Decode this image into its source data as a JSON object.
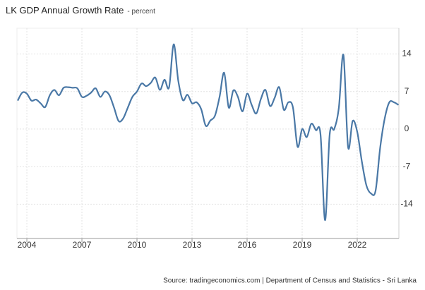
{
  "chart_data": {
    "type": "line",
    "title": "LK GDP Annual Growth Rate",
    "subtitle": "- percent",
    "source": "Source: tradingeconomics.com | Department of Census and Statistics - Sri Lanka",
    "x": [
      2003.5,
      2003.75,
      2004,
      2004.25,
      2004.5,
      2004.75,
      2005,
      2005.25,
      2005.5,
      2005.75,
      2006,
      2006.25,
      2006.5,
      2006.75,
      2007,
      2007.25,
      2007.5,
      2007.75,
      2008,
      2008.25,
      2008.5,
      2008.75,
      2009,
      2009.25,
      2009.5,
      2009.75,
      2010,
      2010.25,
      2010.5,
      2010.75,
      2011,
      2011.25,
      2011.5,
      2011.75,
      2012,
      2012.25,
      2012.5,
      2012.75,
      2013,
      2013.25,
      2013.5,
      2013.75,
      2014,
      2014.25,
      2014.5,
      2014.75,
      2015,
      2015.25,
      2015.5,
      2015.75,
      2016,
      2016.25,
      2016.5,
      2016.75,
      2017,
      2017.25,
      2017.5,
      2017.75,
      2018,
      2018.25,
      2018.5,
      2018.75,
      2019,
      2019.25,
      2019.5,
      2019.75,
      2020,
      2020.25,
      2020.5,
      2020.75,
      2021,
      2021.25,
      2021.5,
      2021.75,
      2022,
      2022.25,
      2022.5,
      2022.75,
      2023,
      2023.25,
      2023.5,
      2023.75,
      2024,
      2024.25
    ],
    "series": [
      {
        "name": "GDP Annual Growth Rate",
        "color": "#4a78a6",
        "values": [
          5.3,
          6.8,
          6.6,
          5.3,
          5.5,
          4.8,
          4.1,
          6.3,
          7.3,
          6.3,
          7.7,
          7.8,
          7.7,
          7.6,
          6.0,
          6.2,
          6.8,
          7.6,
          6.0,
          7.0,
          6.3,
          4.0,
          1.5,
          2.0,
          4.0,
          6.0,
          7.0,
          8.5,
          8.0,
          8.6,
          9.6,
          7.3,
          9.2,
          7.8,
          15.8,
          9.0,
          5.4,
          6.4,
          4.8,
          5.0,
          3.7,
          0.6,
          1.6,
          2.5,
          6.0,
          10.5,
          4.0,
          7.2,
          6.0,
          3.3,
          6.6,
          4.5,
          2.9,
          5.6,
          7.3,
          4.3,
          5.8,
          7.8,
          3.6,
          5.0,
          4.0,
          -3.3,
          0.0,
          -1.5,
          1.0,
          -0.2,
          -1.0,
          -17.0,
          -1.0,
          0.0,
          4.0,
          13.8,
          -3.3,
          1.5,
          -0.5,
          -6.0,
          -10.5,
          -12.0,
          -11.5,
          -3.5,
          2.0,
          5.0,
          5.0,
          4.5
        ]
      }
    ],
    "xlim": [
      2003.46,
      2024.27
    ],
    "xticks": [
      2004,
      2007,
      2010,
      2013,
      2016,
      2019,
      2022
    ],
    "ylim": [
      -20.4,
      18.8
    ],
    "yticks": [
      14,
      7,
      0,
      -7,
      -14
    ],
    "grid": true
  }
}
